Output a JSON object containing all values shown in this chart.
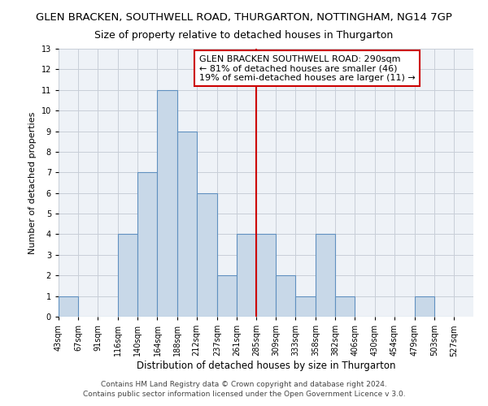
{
  "title": "GLEN BRACKEN, SOUTHWELL ROAD, THURGARTON, NOTTINGHAM, NG14 7GP",
  "subtitle": "Size of property relative to detached houses in Thurgarton",
  "xlabel": "Distribution of detached houses by size in Thurgarton",
  "ylabel": "Number of detached properties",
  "bar_edges": [
    43,
    67,
    91,
    116,
    140,
    164,
    188,
    212,
    237,
    261,
    285,
    309,
    333,
    358,
    382,
    406,
    430,
    454,
    479,
    503,
    527
  ],
  "bar_heights": [
    1,
    0,
    0,
    4,
    7,
    11,
    9,
    6,
    2,
    4,
    4,
    2,
    1,
    4,
    1,
    0,
    0,
    0,
    1,
    0
  ],
  "bar_color": "#c8d8e8",
  "bar_edge_color": "#6090c0",
  "bar_linewidth": 0.8,
  "reference_line_x": 285,
  "reference_line_color": "#cc0000",
  "ylim": [
    0,
    13
  ],
  "yticks": [
    0,
    1,
    2,
    3,
    4,
    5,
    6,
    7,
    8,
    9,
    10,
    11,
    12,
    13
  ],
  "annotation_title": "GLEN BRACKEN SOUTHWELL ROAD: 290sqm",
  "annotation_line1": "← 81% of detached houses are smaller (46)",
  "annotation_line2": "19% of semi-detached houses are larger (11) →",
  "annotation_box_color": "#cc0000",
  "footer_line1": "Contains HM Land Registry data © Crown copyright and database right 2024.",
  "footer_line2": "Contains public sector information licensed under the Open Government Licence v 3.0.",
  "bg_color": "#eef2f7",
  "grid_color": "#c8ced8",
  "title_fontsize": 9.5,
  "subtitle_fontsize": 9,
  "ylabel_fontsize": 8,
  "xlabel_fontsize": 8.5,
  "tick_fontsize": 7,
  "annotation_fontsize": 8,
  "footer_fontsize": 6.5
}
